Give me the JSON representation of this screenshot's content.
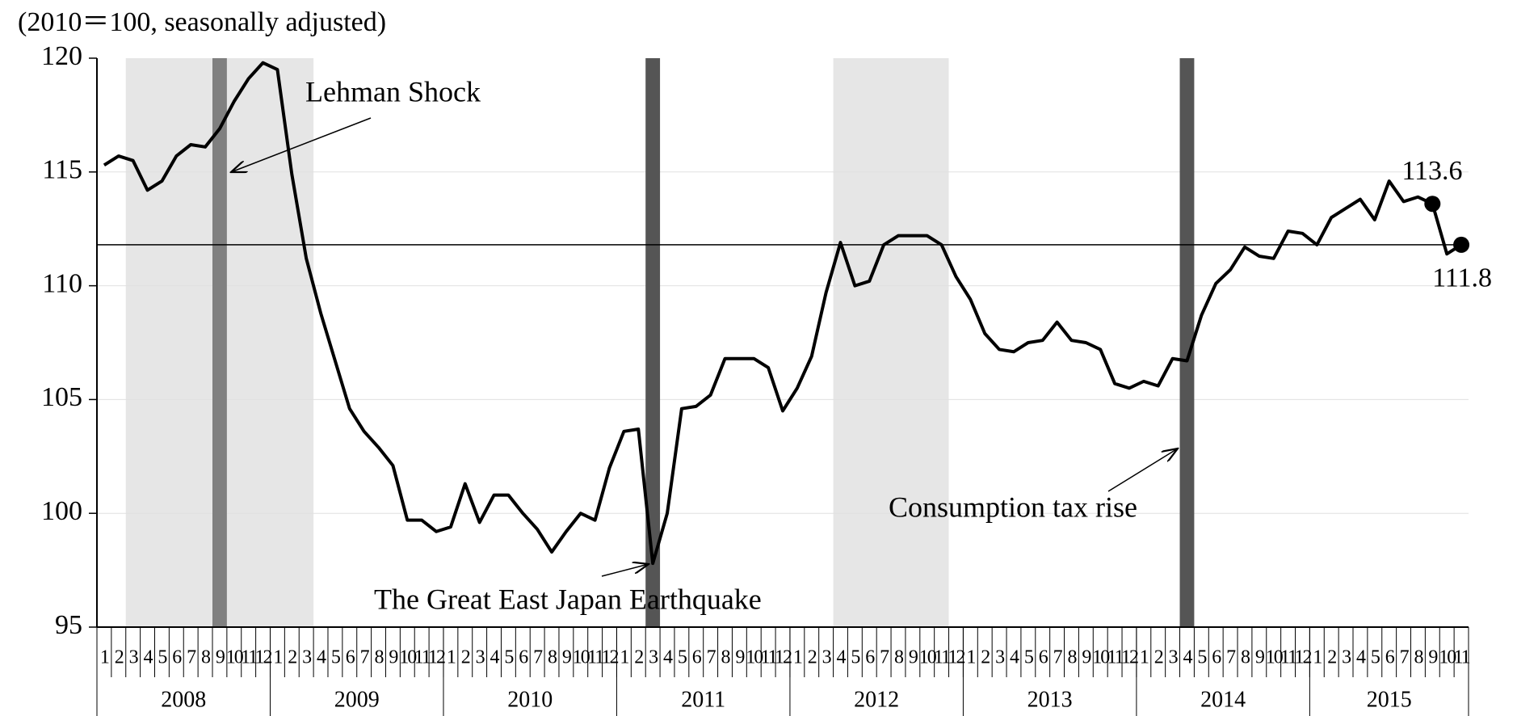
{
  "chart_data": {
    "type": "line",
    "title": "(2010＝100, seasonally adjusted)",
    "categories": [
      "1",
      "2",
      "3",
      "4",
      "5",
      "6",
      "7",
      "8",
      "9",
      "10",
      "11",
      "12",
      "1",
      "2",
      "3",
      "4",
      "5",
      "6",
      "7",
      "8",
      "9",
      "10",
      "11",
      "12",
      "1",
      "2",
      "3",
      "4",
      "5",
      "6",
      "7",
      "8",
      "9",
      "10",
      "11",
      "12",
      "1",
      "2",
      "3",
      "4",
      "5",
      "6",
      "7",
      "8",
      "9",
      "10",
      "11",
      "12",
      "1",
      "2",
      "3",
      "4",
      "5",
      "6",
      "7",
      "8",
      "9",
      "10",
      "11",
      "12",
      "1",
      "2",
      "3",
      "4",
      "5",
      "6",
      "7",
      "8",
      "9",
      "10",
      "11",
      "12",
      "1",
      "2",
      "3",
      "4",
      "5",
      "6",
      "7",
      "8",
      "9",
      "10",
      "11",
      "12",
      "1",
      "2",
      "3",
      "4",
      "5",
      "6",
      "7",
      "8",
      "9",
      "10",
      "11"
    ],
    "years": [
      "2008",
      "2009",
      "2010",
      "2011",
      "2012",
      "2013",
      "2014",
      "2015"
    ],
    "series": [
      {
        "color": "#000000",
        "values": [
          115.3,
          115.7,
          115.5,
          114.2,
          114.6,
          115.7,
          116.2,
          116.1,
          116.9,
          118.1,
          119.1,
          119.8,
          119.5,
          114.9,
          111.2,
          108.8,
          106.7,
          104.6,
          103.6,
          102.9,
          102.1,
          99.7,
          99.7,
          99.2,
          99.4,
          101.3,
          99.6,
          100.8,
          100.8,
          100.0,
          99.3,
          98.3,
          99.2,
          100.0,
          99.7,
          102.0,
          103.6,
          103.7,
          97.8,
          100.0,
          104.6,
          104.7,
          105.2,
          106.8,
          106.8,
          106.8,
          106.4,
          104.5,
          105.5,
          106.9,
          109.7,
          111.9,
          110.0,
          110.2,
          111.8,
          112.2,
          112.2,
          112.2,
          111.8,
          110.4,
          109.4,
          107.9,
          107.2,
          107.1,
          107.5,
          107.6,
          108.4,
          107.6,
          107.5,
          107.2,
          105.7,
          105.5,
          105.8,
          105.6,
          106.8,
          106.7,
          108.7,
          110.1,
          110.7,
          111.7,
          111.3,
          111.2,
          112.4,
          112.3,
          111.8,
          113.0,
          113.4,
          113.8,
          112.9,
          114.6,
          113.7,
          113.9,
          113.6,
          111.4,
          111.8
        ]
      }
    ],
    "labeled_points": [
      92,
      94
    ],
    "reference_line": 111.8,
    "shaded": [
      {
        "from": 2,
        "to": 14,
        "color": "#e6e6e6"
      },
      {
        "from": 51,
        "to": 58,
        "color": "#e6e6e6"
      }
    ],
    "event_bars": [
      {
        "at": 8,
        "color": "#808080"
      },
      {
        "at": 38,
        "color": "#555555"
      },
      {
        "at": 75,
        "color": "#555555"
      }
    ],
    "annotations": [
      "Lehman Shock",
      "The Great East Japan Earthquake",
      "Consumption tax rise"
    ],
    "ylim": [
      95,
      120
    ],
    "yticks": [
      95,
      100,
      105,
      110,
      115,
      120
    ],
    "grid": true
  }
}
